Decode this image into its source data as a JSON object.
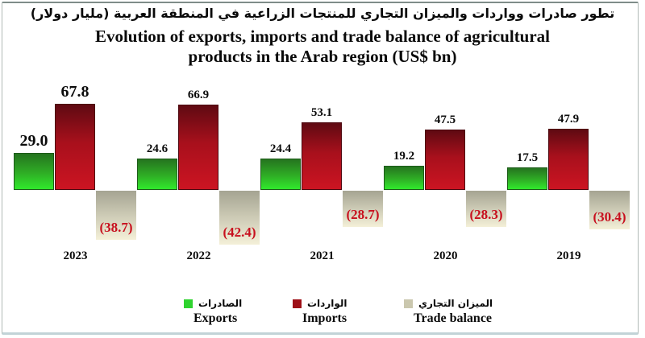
{
  "title": {
    "arabic": "تطور صادرات وواردات والميزان التجاري للمنتجات الزراعية في المنطقة العربية (مليار دولار)",
    "english_line1": "Evolution of exports, imports and trade balance of agricultural",
    "english_line2": "products in the Arab region (US$ bn)"
  },
  "chart_data": {
    "type": "bar",
    "categories": [
      "2023",
      "2022",
      "2021",
      "2020",
      "2019"
    ],
    "series": [
      {
        "name": "Exports",
        "name_ar": "الصادرات",
        "values": [
          29.0,
          24.6,
          24.4,
          19.2,
          17.5
        ]
      },
      {
        "name": "Imports",
        "name_ar": "الواردات",
        "values": [
          67.8,
          66.9,
          53.1,
          47.5,
          47.9
        ]
      },
      {
        "name": "Trade balance",
        "name_ar": "الميزان التجاري",
        "values": [
          -38.7,
          -42.4,
          -28.7,
          -28.3,
          -30.4
        ]
      }
    ],
    "labels": {
      "exports": [
        "29.0",
        "24.6",
        "24.4",
        "19.2",
        "17.5"
      ],
      "imports": [
        "67.8",
        "66.9",
        "53.1",
        "47.5",
        "47.9"
      ],
      "balance": [
        "(38.7)",
        "(42.4)",
        "(28.7)",
        "(28.3)",
        "(30.4)"
      ]
    },
    "title": "Evolution of exports, imports and trade balance of agricultural products in the Arab region (US$ bn)",
    "xlabel": "",
    "ylabel": "",
    "ylim": [
      -45,
      70
    ],
    "grid": false,
    "legend_position": "bottom",
    "bar_direction": "positive above baseline, trade balance below baseline"
  },
  "legend": {
    "items": [
      {
        "ar": "الصادرات",
        "en": "Exports",
        "color": "#2fd32f"
      },
      {
        "ar": "الواردات",
        "en": "Imports",
        "color": "#9e1018"
      },
      {
        "ar": "الميزان التجاري",
        "en": "Trade balance",
        "color": "#cac7ae"
      }
    ]
  },
  "colors": {
    "export_bar_top": "#25741f",
    "export_bar_bottom": "#30e92c",
    "import_bar_top": "#5f0a12",
    "import_bar_bottom": "#cc1422",
    "balance_bar_top": "#a5a492",
    "balance_bar_bottom": "#f4f0d8",
    "balance_label": "#c8101e",
    "value_label": "#0c0c0c",
    "frame": "#aab6b2"
  }
}
